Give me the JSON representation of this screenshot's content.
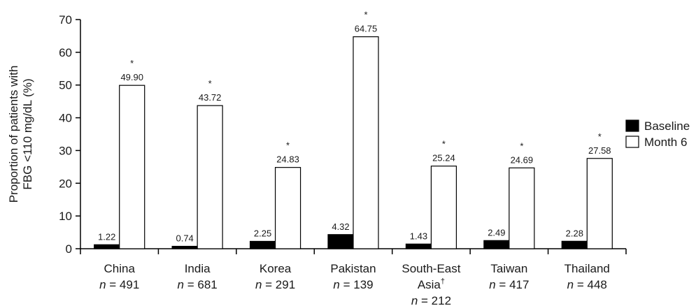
{
  "chart_data": {
    "type": "bar",
    "ylabel_lines": [
      "Proportion of patients with",
      "FBG <110 mg/dL (%)"
    ],
    "ylim": [
      0,
      70
    ],
    "yticks": [
      0,
      10,
      20,
      30,
      40,
      50,
      60,
      70
    ],
    "categories": [
      {
        "name": "China",
        "n_prefix": "n",
        "n_value": "= 491"
      },
      {
        "name": "India",
        "n_prefix": "n",
        "n_value": "= 681"
      },
      {
        "name": "Korea",
        "n_prefix": "n",
        "n_value": "= 291"
      },
      {
        "name": "Pakistan",
        "n_prefix": "n",
        "n_value": "= 139"
      },
      {
        "name": "South-East",
        "name2": "Asia",
        "dagger": "†",
        "n_prefix": "n",
        "n_value": "= 212"
      },
      {
        "name": "Taiwan",
        "n_prefix": "n",
        "n_value": "= 417"
      },
      {
        "name": "Thailand",
        "n_prefix": "n",
        "n_value": "= 448"
      }
    ],
    "series": [
      {
        "name": "Baseline",
        "color": "#000000",
        "values": [
          1.22,
          0.74,
          2.25,
          4.32,
          1.43,
          2.49,
          2.28
        ],
        "labels": [
          "1.22",
          "0.74",
          "2.25",
          "4.32",
          "1.43",
          "2.49",
          "2.28"
        ]
      },
      {
        "name": "Month 6",
        "color": "#ffffff",
        "values": [
          49.9,
          43.72,
          24.83,
          64.75,
          25.24,
          24.69,
          27.58
        ],
        "labels": [
          "49.90",
          "43.72",
          "24.83",
          "64.75",
          "25.24",
          "24.69",
          "27.58"
        ]
      }
    ],
    "significance_marker": "*",
    "legend_placement": "right",
    "grid": false
  }
}
